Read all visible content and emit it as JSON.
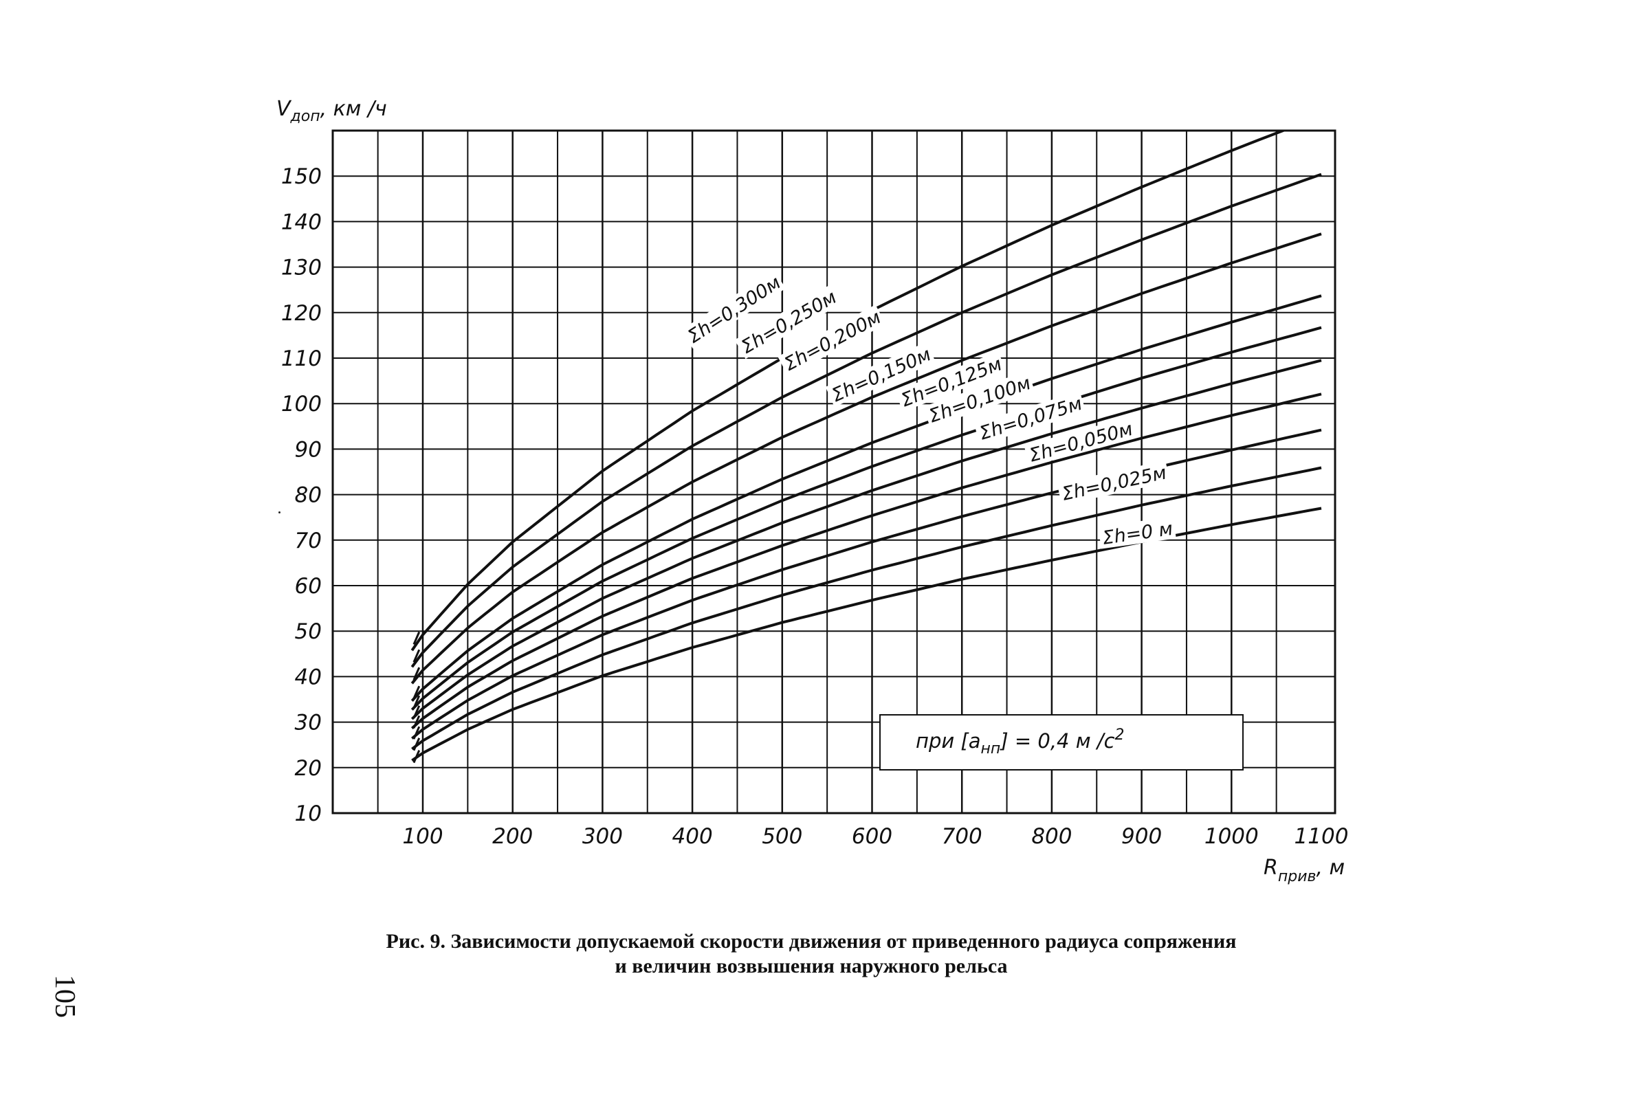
{
  "chart_data": {
    "type": "line",
    "ylabel_main": "V",
    "ylabel_sub": "доп",
    "ylabel_unit": ", км /ч",
    "xlabel_main": "R",
    "xlabel_sub": "прив",
    "xlabel_unit": ", м",
    "xlim": [
      0,
      1100
    ],
    "ylim": [
      10,
      160
    ],
    "x_ticks": [
      100,
      200,
      300,
      400,
      500,
      600,
      700,
      800,
      900,
      1000,
      1100
    ],
    "y_ticks": [
      10,
      20,
      30,
      40,
      50,
      60,
      70,
      80,
      90,
      100,
      110,
      120,
      130,
      140,
      150
    ],
    "grid": true,
    "series": [
      {
        "name": "Σh=0,300м",
        "h": 0.3,
        "x": [
          100,
          150,
          200,
          300,
          400,
          500,
          600,
          700,
          800,
          900,
          1000
        ],
        "y": [
          49.2,
          60.3,
          69.6,
          85.2,
          98.4,
          110.0,
          120.5,
          130.2,
          139.2,
          147.6,
          155.6
        ]
      },
      {
        "name": "Σh=0,250м",
        "h": 0.25,
        "x": [
          100,
          150,
          200,
          300,
          400,
          500,
          600,
          700,
          800,
          900,
          1000,
          1100
        ],
        "y": [
          45.3,
          55.5,
          64.1,
          78.5,
          90.7,
          101.4,
          111.1,
          120.0,
          128.3,
          136.0,
          143.4,
          150.4
        ]
      },
      {
        "name": "Σh=0,200м",
        "h": 0.2,
        "x": [
          100,
          150,
          200,
          300,
          400,
          500,
          600,
          700,
          800,
          900,
          1000,
          1100
        ],
        "y": [
          41.4,
          50.7,
          58.6,
          71.7,
          82.8,
          92.6,
          101.4,
          109.5,
          117.1,
          124.2,
          130.9,
          137.3
        ]
      },
      {
        "name": "Σh=0,150м",
        "h": 0.15,
        "x": [
          100,
          150,
          200,
          300,
          400,
          500,
          600,
          700,
          800,
          900,
          1000,
          1100
        ],
        "y": [
          37.3,
          45.7,
          52.8,
          64.6,
          74.6,
          83.4,
          91.4,
          98.7,
          105.5,
          111.9,
          117.9,
          123.7
        ]
      },
      {
        "name": "Σh=0,125м",
        "h": 0.125,
        "x": [
          100,
          150,
          200,
          300,
          400,
          500,
          600,
          700,
          800,
          900,
          1000,
          1100
        ],
        "y": [
          35.2,
          43.1,
          49.8,
          61.0,
          70.4,
          78.7,
          86.2,
          93.1,
          99.5,
          105.6,
          111.3,
          116.7
        ]
      },
      {
        "name": "Σh=0,100м",
        "h": 0.1,
        "x": [
          100,
          150,
          200,
          300,
          400,
          500,
          600,
          700,
          800,
          900,
          1000,
          1100
        ],
        "y": [
          33.0,
          40.4,
          46.7,
          57.2,
          66.0,
          73.8,
          80.9,
          87.4,
          93.4,
          99.0,
          104.4,
          109.5
        ]
      },
      {
        "name": "Σh=0,075м",
        "h": 0.075,
        "x": [
          100,
          150,
          200,
          300,
          400,
          500,
          600,
          700,
          800,
          900,
          1000,
          1100
        ],
        "y": [
          30.8,
          37.7,
          43.5,
          53.3,
          61.6,
          68.8,
          75.4,
          81.5,
          87.1,
          92.4,
          97.4,
          102.1
        ]
      },
      {
        "name": "Σh=0,050м",
        "h": 0.05,
        "x": [
          100,
          150,
          200,
          300,
          400,
          500,
          600,
          700,
          800,
          900,
          1000,
          1100
        ],
        "y": [
          28.4,
          34.8,
          40.2,
          49.2,
          56.8,
          63.5,
          69.6,
          75.2,
          80.4,
          85.2,
          89.8,
          94.2
        ]
      },
      {
        "name": "Σh=0,025м",
        "h": 0.025,
        "x": [
          100,
          150,
          200,
          300,
          400,
          500,
          600,
          700,
          800,
          900,
          1000,
          1100
        ],
        "y": [
          25.9,
          31.7,
          36.6,
          44.8,
          51.8,
          57.9,
          63.4,
          68.5,
          73.2,
          77.7,
          81.9,
          85.9
        ]
      },
      {
        "name": "Σh=0 м",
        "h": 0.0,
        "x": [
          100,
          150,
          200,
          300,
          400,
          500,
          600,
          700,
          800,
          900,
          1000,
          1100
        ],
        "y": [
          23.2,
          28.4,
          32.8,
          40.2,
          46.4,
          51.9,
          56.8,
          61.4,
          65.6,
          69.6,
          73.4,
          77.0
        ]
      }
    ]
  },
  "note": {
    "prefix": "при [a",
    "sub": "нп",
    "suffix": "] =  0,4 м /с",
    "sup": "2"
  },
  "caption": {
    "line1": "Рис. 9. Зависимости допускаемой скорости движения от приведенного радиуса сопряжения",
    "line2": "и величин возвышения наружного рельса"
  },
  "page_number": "105"
}
